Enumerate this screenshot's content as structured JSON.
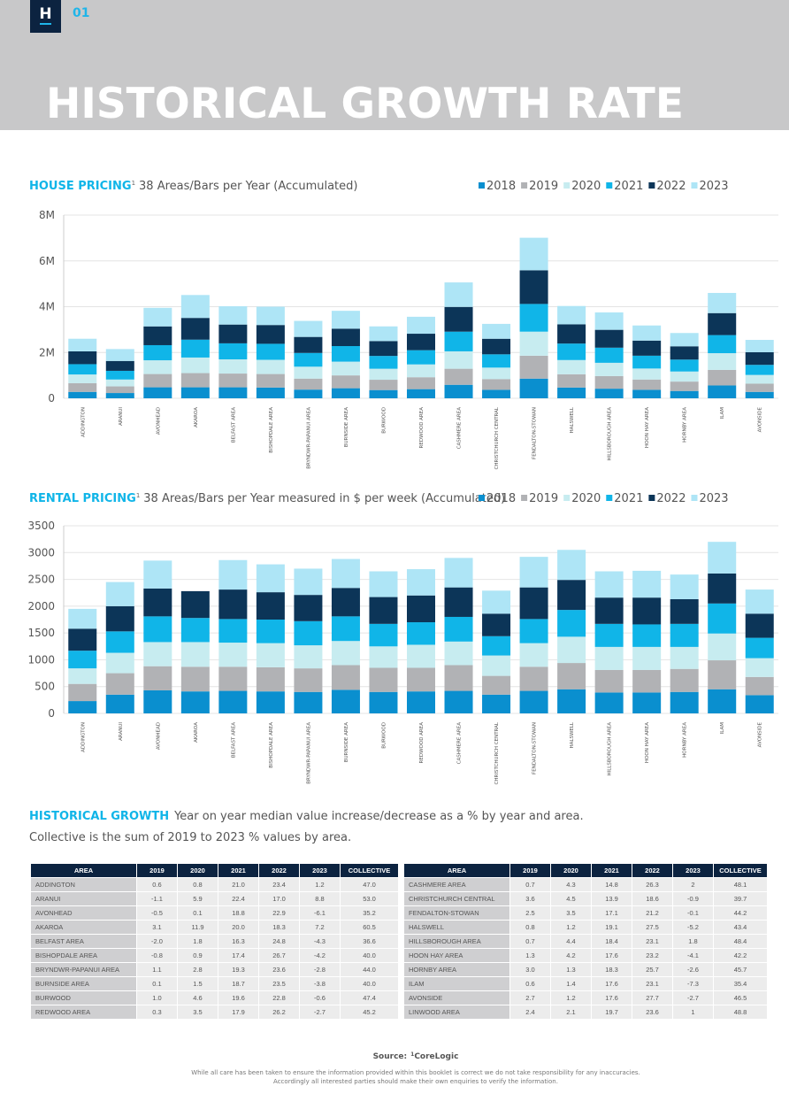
{
  "header": {
    "logo": "H",
    "page_number": "01",
    "title": "HISTORICAL GROWTH RATE"
  },
  "chart_data": [
    {
      "type": "bar",
      "stacked": true,
      "title": "HOUSE PRICING",
      "title_note": "1",
      "subtitle": "38 Areas/Bars per Year (Accumulated)",
      "categories": [
        "ADDINGTON",
        "ARANUI",
        "AVONHEAD",
        "AKAROA",
        "BELFAST AREA",
        "BISHOPDALE AREA",
        "BRYNDWR-PAPANUI AREA",
        "BURNSIDE AREA",
        "BURWOOD",
        "REDWOOD AREA",
        "CASHMERE AREA",
        "CHRISTCHURCH CENTRAL",
        "FENDALTON-STOWAN",
        "HALSWELL",
        "HILLSBOROUGH AREA",
        "HOON HAY AREA",
        "HORNBY AREA",
        "ILAM",
        "AVONSIDE"
      ],
      "series": [
        {
          "name": "2018",
          "color": "#0a8fcf",
          "values": [
            280000,
            230000,
            480000,
            480000,
            480000,
            470000,
            380000,
            440000,
            360000,
            400000,
            590000,
            370000,
            860000,
            470000,
            420000,
            370000,
            320000,
            560000,
            280000
          ]
        },
        {
          "name": "2019",
          "color": "#b1b2b5",
          "values": [
            380000,
            290000,
            580000,
            620000,
            600000,
            590000,
            480000,
            560000,
            450000,
            520000,
            700000,
            470000,
            1000000,
            580000,
            550000,
            450000,
            410000,
            680000,
            360000
          ]
        },
        {
          "name": "2020",
          "color": "#c7ecf0",
          "values": [
            380000,
            300000,
            600000,
            680000,
            620000,
            620000,
            520000,
            600000,
            480000,
            560000,
            760000,
            500000,
            1050000,
            620000,
            580000,
            480000,
            440000,
            730000,
            380000
          ]
        },
        {
          "name": "2021",
          "color": "#10b5e8",
          "values": [
            450000,
            380000,
            660000,
            780000,
            700000,
            700000,
            600000,
            680000,
            560000,
            620000,
            860000,
            580000,
            1210000,
            720000,
            660000,
            560000,
            520000,
            790000,
            440000
          ]
        },
        {
          "name": "2022",
          "color": "#0c3558",
          "values": [
            560000,
            430000,
            820000,
            950000,
            820000,
            820000,
            700000,
            760000,
            650000,
            720000,
            1080000,
            680000,
            1470000,
            840000,
            780000,
            660000,
            580000,
            960000,
            550000
          ]
        },
        {
          "name": "2023",
          "color": "#aee5f6",
          "values": [
            550000,
            520000,
            810000,
            1000000,
            800000,
            800000,
            700000,
            780000,
            640000,
            740000,
            1070000,
            650000,
            1420000,
            800000,
            760000,
            660000,
            580000,
            880000,
            540000
          ]
        }
      ],
      "ylim": [
        0,
        8000000
      ],
      "yticks": [
        0,
        {
          "value": 2000000,
          "label": "2M"
        },
        {
          "value": 4000000,
          "label": "4M"
        },
        {
          "value": 6000000,
          "label": "6M"
        },
        {
          "value": 8000000,
          "label": "8M"
        }
      ],
      "grid": true,
      "legend": "top-right"
    },
    {
      "type": "bar",
      "stacked": true,
      "title": "RENTAL PRICING",
      "title_note": "1",
      "subtitle": "38 Areas/Bars per Year measured in $ per week (Accumulated)",
      "categories": [
        "ADDINGTON",
        "ARANUI",
        "AVONHEAD",
        "AKAROA",
        "BELFAST AREA",
        "BISHOPDALE AREA",
        "BRYNDWR-PAPANUI AREA",
        "BURNSIDE AREA",
        "BURWOOD",
        "REDWOOD AREA",
        "CASHMERE AREA",
        "CHRISTCHURCH CENTRAL",
        "FENDALTON-STOWAN",
        "HALSWELL",
        "HILLSBOROUGH AREA",
        "HOON HAY AREA",
        "HORNBY AREA",
        "ILAM",
        "AVONSIDE"
      ],
      "series": [
        {
          "name": "2018",
          "color": "#0a8fcf",
          "values": [
            230,
            350,
            430,
            410,
            420,
            410,
            400,
            440,
            400,
            410,
            420,
            350,
            420,
            450,
            390,
            390,
            400,
            450,
            340
          ]
        },
        {
          "name": "2019",
          "color": "#b1b2b5",
          "values": [
            320,
            400,
            450,
            460,
            450,
            450,
            440,
            460,
            450,
            440,
            480,
            350,
            450,
            490,
            420,
            420,
            430,
            540,
            340
          ]
        },
        {
          "name": "2020",
          "color": "#c7ecf0",
          "values": [
            290,
            380,
            450,
            460,
            450,
            450,
            430,
            450,
            400,
            430,
            440,
            380,
            440,
            490,
            430,
            430,
            410,
            500,
            350
          ]
        },
        {
          "name": "2021",
          "color": "#10b5e8",
          "values": [
            330,
            400,
            480,
            450,
            440,
            440,
            450,
            460,
            420,
            420,
            460,
            360,
            450,
            500,
            430,
            420,
            430,
            560,
            380
          ]
        },
        {
          "name": "2022",
          "color": "#0c3558",
          "values": [
            410,
            470,
            520,
            500,
            550,
            510,
            490,
            530,
            500,
            500,
            550,
            420,
            590,
            560,
            490,
            500,
            460,
            560,
            450
          ]
        },
        {
          "name": "2023",
          "color": "#aee5f6",
          "values": [
            370,
            450,
            520,
            0,
            550,
            520,
            490,
            540,
            480,
            490,
            550,
            430,
            570,
            560,
            490,
            500,
            460,
            590,
            450
          ]
        }
      ],
      "ylim": [
        0,
        3500
      ],
      "yticks": [
        0,
        500,
        1000,
        1500,
        2000,
        2500,
        3000,
        3500
      ],
      "grid": true,
      "legend": "top-right"
    }
  ],
  "historical_growth": {
    "title": "HISTORICAL GROWTH",
    "subtitle": "Year on year median value increase/decrease as a % by year and area.",
    "note": "Collective is the sum of 2019 to 2023 % values by area.",
    "columns": [
      "AREA",
      "2019",
      "2020",
      "2021",
      "2022",
      "2023",
      "COLLECTIVE"
    ],
    "tables": [
      [
        [
          "ADDINGTON",
          "0.6",
          "0.8",
          "21.0",
          "23.4",
          "1.2",
          "47.0"
        ],
        [
          "ARANUI",
          "-1.1",
          "5.9",
          "22.4",
          "17.0",
          "8.8",
          "53.0"
        ],
        [
          "AVONHEAD",
          "-0.5",
          "0.1",
          "18.8",
          "22.9",
          "-6.1",
          "35.2"
        ],
        [
          "AKAROA",
          "3.1",
          "11.9",
          "20.0",
          "18.3",
          "7.2",
          "60.5"
        ],
        [
          "BELFAST AREA",
          "-2.0",
          "1.8",
          "16.3",
          "24.8",
          "-4.3",
          "36.6"
        ],
        [
          "BISHOPDALE AREA",
          "-0.8",
          "0.9",
          "17.4",
          "26.7",
          "-4.2",
          "40.0"
        ],
        [
          "BRYNDWR-PAPANUI AREA",
          "1.1",
          "2.8",
          "19.3",
          "23.6",
          "-2.8",
          "44.0"
        ],
        [
          "BURNSIDE AREA",
          "0.1",
          "1.5",
          "18.7",
          "23.5",
          "-3.8",
          "40.0"
        ],
        [
          "BURWOOD",
          "1.0",
          "4.6",
          "19.6",
          "22.8",
          "-0.6",
          "47.4"
        ],
        [
          "REDWOOD AREA",
          "0.3",
          "3.5",
          "17.9",
          "26.2",
          "-2.7",
          "45.2"
        ]
      ],
      [
        [
          "CASHMERE AREA",
          "0.7",
          "4.3",
          "14.8",
          "26.3",
          "2",
          "48.1"
        ],
        [
          "CHRISTCHURCH CENTRAL",
          "3.6",
          "4.5",
          "13.9",
          "18.6",
          "-0.9",
          "39.7"
        ],
        [
          "FENDALTON-STOWAN",
          "2.5",
          "3.5",
          "17.1",
          "21.2",
          "-0.1",
          "44.2"
        ],
        [
          "HALSWELL",
          "0.8",
          "1.2",
          "19.1",
          "27.5",
          "-5.2",
          "43.4"
        ],
        [
          "HILLSBOROUGH AREA",
          "0.7",
          "4.4",
          "18.4",
          "23.1",
          "1.8",
          "48.4"
        ],
        [
          "HOON HAY AREA",
          "1.3",
          "4.2",
          "17.6",
          "23.2",
          "-4.1",
          "42.2"
        ],
        [
          "HORNBY AREA",
          "3.0",
          "1.3",
          "18.3",
          "25.7",
          "-2.6",
          "45.7"
        ],
        [
          "ILAM",
          "0.6",
          "1.4",
          "17.6",
          "23.1",
          "-7.3",
          "35.4"
        ],
        [
          "AVONSIDE",
          "2.7",
          "1.2",
          "17.6",
          "27.7",
          "-2.7",
          "46.5"
        ],
        [
          "LINWOOD AREA",
          "2.4",
          "2.1",
          "19.7",
          "23.6",
          "1",
          "48.8"
        ]
      ]
    ]
  },
  "footer": {
    "source_label": "Source:",
    "source_note": "1",
    "source": "CoreLogic",
    "disclaimer": [
      "While all care has been taken to ensure the information provided within this booklet is correct we do not take responsibility for any inaccuracies.",
      "Accordingly all interested parties should make their own enquiries to verify the information."
    ]
  }
}
